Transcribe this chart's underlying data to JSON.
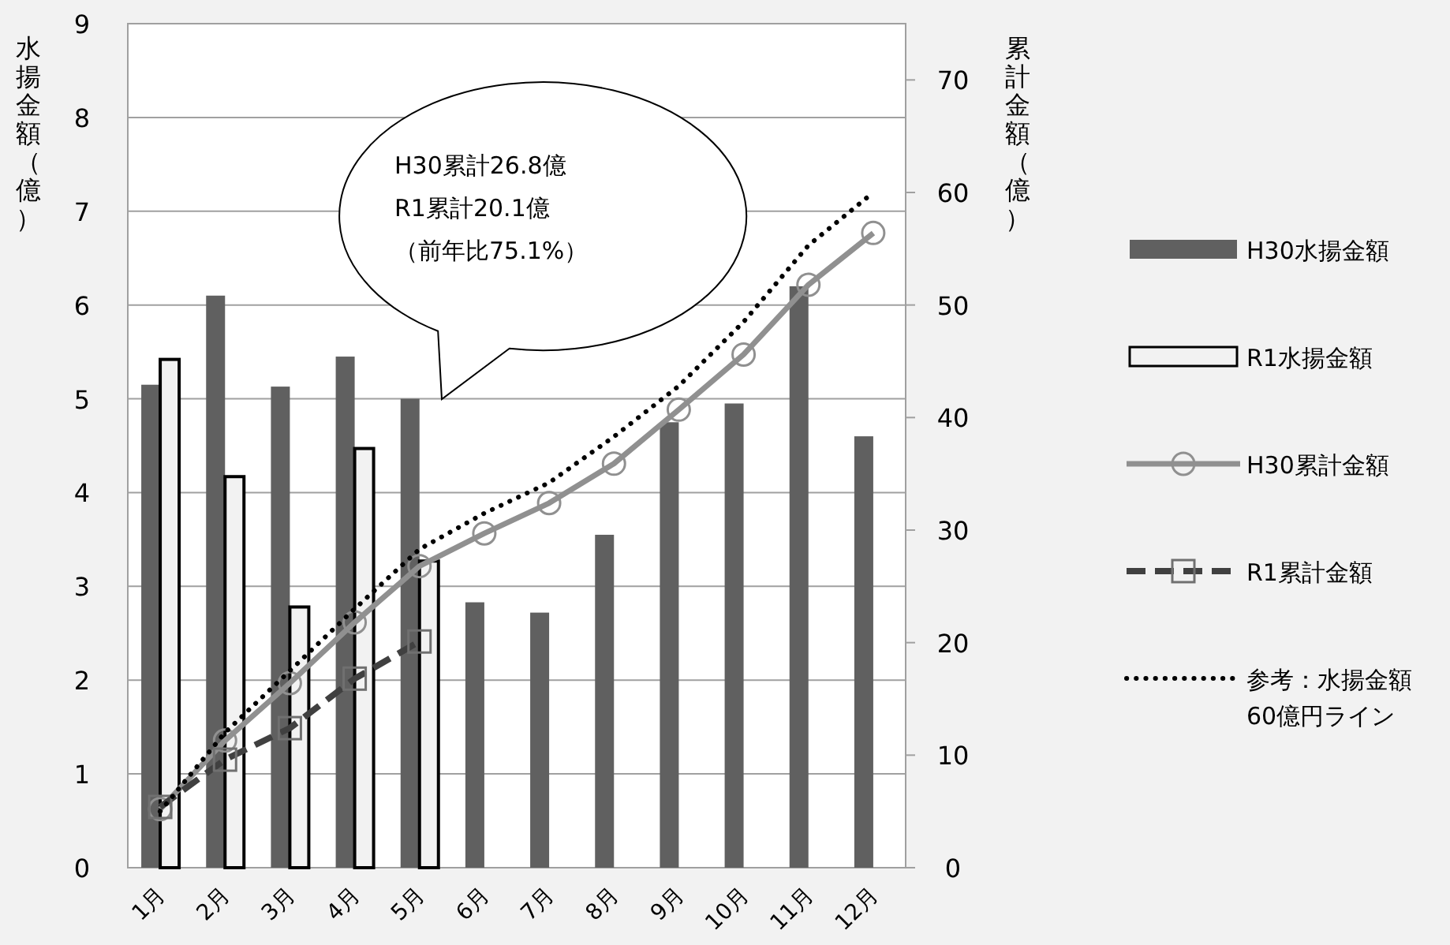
{
  "chart_data": {
    "type": "bar",
    "ylabel": "水揚金額（億）",
    "y2label": "累計金額（億）",
    "categories": [
      "1月",
      "2月",
      "3月",
      "4月",
      "5月",
      "6月",
      "7月",
      "8月",
      "9月",
      "10月",
      "11月",
      "12月"
    ],
    "series": [
      {
        "name": "H30水揚金額",
        "color": "#606060",
        "values": [
          5.15,
          6.1,
          5.13,
          5.45,
          5.0,
          2.83,
          2.72,
          3.55,
          4.75,
          4.95,
          6.2,
          4.6
        ]
      },
      {
        "name": "R1水揚金額",
        "color": "#f2f2f2",
        "values": [
          5.42,
          4.17,
          2.78,
          4.47,
          3.27,
          null,
          null,
          null,
          null,
          null,
          null,
          null
        ]
      },
      {
        "name": "H30累計金額",
        "type": "line",
        "axis": "y2",
        "color": "#909090",
        "marker": "circle",
        "line_style": "solid",
        "values": [
          5.2,
          11.3,
          16.4,
          21.8,
          26.8,
          29.7,
          32.4,
          35.9,
          40.7,
          45.6,
          51.8,
          56.4
        ]
      },
      {
        "name": "R1累計金額",
        "type": "line",
        "axis": "y2",
        "color": "#404040",
        "marker": "square",
        "line_style": "dashed",
        "values": [
          5.4,
          9.6,
          12.4,
          16.8,
          20.1,
          null,
          null,
          null,
          null,
          null,
          null,
          null
        ]
      },
      {
        "name": "参考：水揚金額60億円ライン",
        "type": "line",
        "axis": "y2",
        "color": "#000000",
        "marker": "none",
        "line_style": "dotted",
        "values": [
          5,
          12,
          17.5,
          23,
          28.3,
          31.5,
          34.2,
          38.3,
          42.8,
          48.5,
          55.3,
          60
        ]
      }
    ],
    "ylim": [
      0,
      9
    ],
    "yticks": [
      0,
      1,
      2,
      3,
      4,
      5,
      6,
      7,
      8,
      9
    ],
    "y2lim": [
      0,
      75
    ],
    "y2ticks": [
      0,
      10,
      20,
      30,
      40,
      50,
      60,
      70
    ],
    "grid": "y",
    "legend": "right",
    "annotations": [
      "H30累計26.8億",
      "R1累計20.1億",
      "（前年比75.1%）"
    ]
  }
}
